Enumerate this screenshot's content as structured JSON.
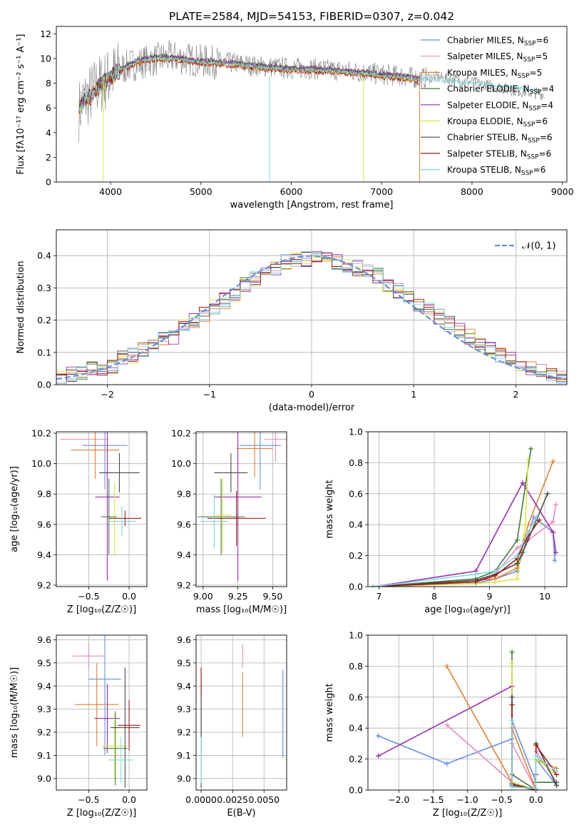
{
  "colors": {
    "chabrier_miles": "#6a8fde",
    "salpeter_miles": "#e58ac2",
    "kroupa_miles": "#e5802f",
    "chabrier_elodie": "#3f7a3f",
    "salpeter_elodie": "#9a2fb0",
    "kroupa_elodie": "#d9e640",
    "chabrier_stelib": "#4a4a4a",
    "salpeter_stelib": "#a31818",
    "kroupa_stelib": "#7fd8e0",
    "normal_curve": "#6a8fde"
  },
  "chart_data": [
    {
      "id": "spectrum",
      "type": "line",
      "title": "PLATE=2584, MJD=54153, FIBERID=0307, z=0.042",
      "xlabel": "wavelength [Angstrom, rest frame]",
      "ylabel": "Flux [fλ10⁻¹⁷ erg cm⁻² s⁻¹ A⁻¹]",
      "xlim": [
        3400,
        9050
      ],
      "ylim": [
        0,
        12.6
      ],
      "xticks": [
        4000,
        5000,
        6000,
        7000,
        8000,
        9000
      ],
      "yticks": [
        0,
        2,
        4,
        6,
        8,
        10,
        12
      ],
      "grid": false,
      "legend_position": "top-right",
      "legend": [
        {
          "label": "Chabrier MILES, N",
          "sub": "SSP",
          "tail": "=6"
        },
        {
          "label": "Salpeter MILES, N",
          "sub": "SSP",
          "tail": "=5"
        },
        {
          "label": "Kroupa MILES, N",
          "sub": "SSP",
          "tail": "=5"
        },
        {
          "label": "Chabrier ELODIE, N",
          "sub": "SSP",
          "tail": "=4"
        },
        {
          "label": "Salpeter ELODIE, N",
          "sub": "SSP",
          "tail": "=4"
        },
        {
          "label": "Kroupa ELODIE, N",
          "sub": "SSP",
          "tail": "=6"
        },
        {
          "label": "Chabrier STELIB, N",
          "sub": "SSP",
          "tail": "=6"
        },
        {
          "label": "Salpeter STELIB, N",
          "sub": "SSP",
          "tail": "=6"
        },
        {
          "label": "Kroupa STELIB, N",
          "sub": "SSP",
          "tail": "=6"
        }
      ],
      "series": [
        {
          "key": "data",
          "color": "#808080",
          "x": [
            3650,
            3700,
            3750,
            3800,
            3850,
            3900,
            3950,
            4000,
            4100,
            4200,
            4300,
            4400,
            4500,
            4600,
            4700,
            4800,
            4900,
            5000,
            5200,
            5400,
            5600,
            5800,
            6000,
            6200,
            6400,
            6600,
            6800,
            7000,
            7200,
            7400,
            7600,
            7800,
            8000,
            8200,
            8400,
            8600,
            8800
          ],
          "y": [
            5.8,
            6.6,
            6.9,
            7.3,
            7.8,
            8.0,
            8.2,
            8.6,
            9.1,
            9.4,
            9.6,
            9.8,
            9.9,
            10.0,
            10.1,
            10.0,
            9.9,
            9.8,
            9.7,
            9.6,
            9.4,
            9.3,
            9.2,
            9.2,
            9.1,
            9.0,
            8.9,
            8.7,
            8.6,
            8.4,
            8.5,
            8.3,
            8.1,
            7.8,
            7.5,
            7.3,
            7.1
          ]
        },
        {
          "key": "models",
          "color": "#7fd8e0",
          "x": [
            3650,
            3700,
            3750,
            3800,
            3850,
            3900,
            3950,
            4000,
            4100,
            4200,
            4300,
            4400,
            4500,
            4600,
            4700,
            4800,
            4900,
            5000,
            5200,
            5400,
            5600,
            5800,
            6000,
            6200,
            6400,
            6600,
            6800,
            7000,
            7200,
            7400
          ],
          "y": [
            6.0,
            6.4,
            6.7,
            7.1,
            7.6,
            7.9,
            8.1,
            8.5,
            9.0,
            9.4,
            9.7,
            9.9,
            10.0,
            10.0,
            10.0,
            9.9,
            9.8,
            9.7,
            9.6,
            9.5,
            9.3,
            9.2,
            9.1,
            9.1,
            9.0,
            8.9,
            8.8,
            8.6,
            8.5,
            8.3
          ]
        }
      ]
    },
    {
      "id": "residuals",
      "type": "line",
      "xlabel": "(data-model)/error",
      "ylabel": "Normed distribution",
      "xlim": [
        -2.5,
        2.5
      ],
      "ylim": [
        0,
        0.48
      ],
      "xticks": [
        -2,
        -1,
        0,
        1,
        2
      ],
      "xtick_labels": [
        "−2",
        "−1",
        "0",
        "1",
        "2"
      ],
      "yticks": [
        0.0,
        0.1,
        0.2,
        0.3,
        0.4
      ],
      "ytick_labels": [
        "0.0",
        "0.1",
        "0.2",
        "0.3",
        "0.4"
      ],
      "grid": true,
      "legend_position": "top-right",
      "legend": [
        {
          "label": "𝒩(0, 1)"
        }
      ],
      "bin_edges": [
        -2.5,
        -2.4,
        -2.3,
        -2.2,
        -2.1,
        -2.0,
        -1.9,
        -1.8,
        -1.7,
        -1.6,
        -1.5,
        -1.4,
        -1.3,
        -1.2,
        -1.1,
        -1.0,
        -0.9,
        -0.8,
        -0.7,
        -0.6,
        -0.5,
        -0.4,
        -0.3,
        -0.2,
        -0.1,
        0.0,
        0.1,
        0.2,
        0.3,
        0.4,
        0.5,
        0.6,
        0.7,
        0.8,
        0.9,
        1.0,
        1.1,
        1.2,
        1.3,
        1.4,
        1.5,
        1.6,
        1.7,
        1.8,
        1.9,
        2.0,
        2.1,
        2.2,
        2.3,
        2.4,
        2.5
      ],
      "hist_base": [
        0.02,
        0.03,
        0.04,
        0.05,
        0.05,
        0.06,
        0.08,
        0.09,
        0.11,
        0.12,
        0.14,
        0.15,
        0.18,
        0.2,
        0.22,
        0.24,
        0.26,
        0.28,
        0.31,
        0.33,
        0.35,
        0.36,
        0.38,
        0.39,
        0.39,
        0.4,
        0.39,
        0.38,
        0.37,
        0.36,
        0.35,
        0.34,
        0.31,
        0.29,
        0.27,
        0.25,
        0.23,
        0.21,
        0.19,
        0.17,
        0.15,
        0.13,
        0.11,
        0.09,
        0.08,
        0.06,
        0.05,
        0.04,
        0.03,
        0.02
      ],
      "curve": {
        "type": "normal",
        "mean": 0,
        "sd": 1
      }
    },
    {
      "id": "age_vs_Z",
      "type": "scatter",
      "xlabel": "Z [log₁₀(Z/Z☉)]",
      "ylabel": "age  [log₁₀(age/yr)]",
      "xlim": [
        -0.9,
        0.22
      ],
      "ylim": [
        9.19,
        10.21
      ],
      "xticks": [
        -0.5,
        0.0
      ],
      "xtick_labels": [
        "−0.5",
        "0.0"
      ],
      "yticks": [
        9.2,
        9.4,
        9.6,
        9.8,
        10.0,
        10.2
      ],
      "ytick_labels": [
        "9.2",
        "9.4",
        "9.6",
        "9.8",
        "10.0",
        "10.2"
      ],
      "grid": true,
      "points": [
        {
          "x": -0.3,
          "xerr": 0.28,
          "y": 10.12,
          "yerr": 0.29
        },
        {
          "x": -0.55,
          "xerr": 0.3,
          "y": 10.16,
          "yerr": 0.0
        },
        {
          "x": -0.42,
          "xerr": 0.3,
          "y": 10.09,
          "yerr": 0.19
        },
        {
          "x": -0.25,
          "xerr": 0.1,
          "y": 9.65,
          "yerr": 0.25
        },
        {
          "x": -0.27,
          "xerr": 0.15,
          "y": 9.78,
          "yerr": 0.55
        },
        {
          "x": -0.18,
          "xerr": 0.06,
          "y": 9.64,
          "yerr": 0.24
        },
        {
          "x": -0.12,
          "xerr": 0.25,
          "y": 9.94,
          "yerr": 0.13
        },
        {
          "x": -0.05,
          "xerr": 0.2,
          "y": 9.64,
          "yerr": 0.05
        },
        {
          "x": -0.09,
          "xerr": 0.18,
          "y": 9.62,
          "yerr": 0.1
        }
      ]
    },
    {
      "id": "age_vs_mass",
      "type": "scatter",
      "xlabel": "mass [log₁₀(M/M☉)]",
      "xlim": [
        8.95,
        9.6
      ],
      "ylim": [
        9.19,
        10.21
      ],
      "xticks": [
        9.0,
        9.25,
        9.5
      ],
      "xtick_labels": [
        "9.00",
        "9.25",
        "9.50"
      ],
      "yticks": [
        9.2,
        9.4,
        9.6,
        9.8,
        10.0,
        10.2
      ],
      "ytick_labels": [
        "9.2",
        "9.4",
        "9.6",
        "9.8",
        "10.0",
        "10.2"
      ],
      "grid": true,
      "points": [
        {
          "x": 9.41,
          "xerr": 0.15,
          "y": 10.12,
          "yerr": 0.29
        },
        {
          "x": 9.52,
          "xerr": 0.08,
          "y": 10.16,
          "yerr": 0.15
        },
        {
          "x": 9.37,
          "xerr": 0.13,
          "y": 10.1,
          "yerr": 0.19
        },
        {
          "x": 9.13,
          "xerr": 0.17,
          "y": 9.65,
          "yerr": 0.25
        },
        {
          "x": 9.25,
          "xerr": 0.17,
          "y": 9.78,
          "yerr": 0.55
        },
        {
          "x": 9.14,
          "xerr": 0.06,
          "y": 9.66,
          "yerr": 0.24
        },
        {
          "x": 9.2,
          "xerr": 0.12,
          "y": 9.94,
          "yerr": 0.13
        },
        {
          "x": 9.24,
          "xerr": 0.21,
          "y": 9.64,
          "yerr": 0.18
        },
        {
          "x": 9.08,
          "xerr": 0.1,
          "y": 9.62,
          "yerr": 0.18
        }
      ]
    },
    {
      "id": "massweight_vs_age",
      "type": "line",
      "xlabel": "age  [log₁₀(age/yr)]",
      "ylabel": "mass weight",
      "xlim": [
        6.8,
        10.4
      ],
      "ylim": [
        0,
        1.0
      ],
      "xticks": [
        7,
        8,
        9,
        10
      ],
      "xtick_labels": [
        "7",
        "8",
        "9",
        "10"
      ],
      "yticks": [
        0.0,
        0.2,
        0.4,
        0.6,
        0.8,
        1.0
      ],
      "ytick_labels": [
        "0.0",
        "0.2",
        "0.4",
        "0.6",
        "0.8",
        "1.0"
      ],
      "grid": true,
      "series": [
        {
          "x": [
            6.9,
            8.75,
            9.1,
            9.5,
            9.8,
            10.15,
            10.18
          ],
          "y": [
            0.0,
            0.02,
            0.05,
            0.1,
            0.45,
            0.35,
            0.17
          ]
        },
        {
          "x": [
            6.9,
            8.75,
            9.1,
            9.5,
            9.7,
            10.15,
            10.2
          ],
          "y": [
            0.0,
            0.03,
            0.08,
            0.25,
            0.3,
            0.42,
            0.53
          ]
        },
        {
          "x": [
            6.9,
            8.75,
            9.1,
            9.5,
            9.7,
            10.15
          ],
          "y": [
            0.0,
            0.04,
            0.05,
            0.12,
            0.4,
            0.81
          ]
        },
        {
          "x": [
            6.9,
            8.75,
            9.1,
            9.5,
            9.75
          ],
          "y": [
            0.0,
            0.05,
            0.1,
            0.3,
            0.89
          ]
        },
        {
          "x": [
            6.9,
            8.75,
            9.6,
            10.15,
            10.2
          ],
          "y": [
            0.0,
            0.1,
            0.67,
            0.35,
            0.22
          ]
        },
        {
          "x": [
            6.9,
            8.75,
            9.1,
            9.5,
            9.65,
            9.7
          ],
          "y": [
            0.0,
            0.02,
            0.03,
            0.05,
            0.4,
            0.82
          ]
        },
        {
          "x": [
            6.9,
            8.75,
            9.1,
            9.5,
            9.6,
            10.05
          ],
          "y": [
            0.0,
            0.04,
            0.08,
            0.15,
            0.22,
            0.6
          ]
        },
        {
          "x": [
            6.9,
            8.75,
            9.1,
            9.5,
            9.65,
            9.9
          ],
          "y": [
            0.0,
            0.03,
            0.07,
            0.18,
            0.3,
            0.43
          ]
        },
        {
          "x": [
            6.9,
            8.75,
            9.1,
            9.5,
            9.7,
            9.85
          ],
          "y": [
            0.0,
            0.08,
            0.1,
            0.2,
            0.35,
            0.45
          ]
        }
      ]
    },
    {
      "id": "mass_vs_Z",
      "type": "scatter",
      "xlabel": "Z [log₁₀(Z/Z☉)]",
      "ylabel": "mass [log₁₀(M/M☉)]",
      "xlim": [
        -0.9,
        0.22
      ],
      "ylim": [
        8.95,
        9.62
      ],
      "xticks": [
        -0.5,
        0.0
      ],
      "xtick_labels": [
        "−0.5",
        "0.0"
      ],
      "yticks": [
        9.0,
        9.1,
        9.2,
        9.3,
        9.4,
        9.5,
        9.6
      ],
      "ytick_labels": [
        "9.0",
        "9.1",
        "9.2",
        "9.3",
        "9.4",
        "9.5",
        "9.6"
      ],
      "grid": true,
      "points": [
        {
          "x": -0.3,
          "xerr": 0.2,
          "y": 9.43,
          "yerr": 0.33
        },
        {
          "x": -0.5,
          "xerr": 0.2,
          "y": 9.53,
          "yerr": 0.06
        },
        {
          "x": -0.4,
          "xerr": 0.27,
          "y": 9.32,
          "yerr": 0.18
        },
        {
          "x": -0.17,
          "xerr": 0.15,
          "y": 9.13,
          "yerr": 0.16
        },
        {
          "x": -0.27,
          "xerr": 0.16,
          "y": 9.26,
          "yerr": 0.15
        },
        {
          "x": -0.18,
          "xerr": 0.16,
          "y": 9.14,
          "yerr": 0.14
        },
        {
          "x": -0.05,
          "xerr": 0.18,
          "y": 9.22,
          "yerr": 0.26
        },
        {
          "x": 0.0,
          "xerr": 0.14,
          "y": 9.23,
          "yerr": 0.11
        },
        {
          "x": -0.1,
          "xerr": 0.15,
          "y": 9.08,
          "yerr": 0.1
        }
      ]
    },
    {
      "id": "mass_vs_EBV",
      "type": "scatter",
      "xlabel": "E(B-V)",
      "xlim": [
        -0.0004,
        0.0068
      ],
      "ylim": [
        8.95,
        9.62
      ],
      "xticks": [
        0.0,
        0.0025,
        0.005
      ],
      "xtick_labels": [
        "0.0000",
        "0.0025",
        "0.0050"
      ],
      "yticks": [
        9.0,
        9.1,
        9.2,
        9.3,
        9.4,
        9.5,
        9.6
      ],
      "ytick_labels": [
        "9.0",
        "9.1",
        "9.2",
        "9.3",
        "9.4",
        "9.5",
        "9.6"
      ],
      "grid": true,
      "points": [
        {
          "x": 0.0065,
          "y": 9.28,
          "yerr": 0.19
        },
        {
          "x": 0.0033,
          "y": 9.53,
          "yerr": 0.05
        },
        {
          "x": 0.0033,
          "y": 9.32,
          "yerr": 0.14
        },
        {
          "x": 0.0,
          "y": 9.13,
          "yerr": 0.16
        },
        {
          "x": 0.0,
          "y": 9.26,
          "yerr": 0.15
        },
        {
          "x": 0.0,
          "y": 9.0,
          "yerr": 0.03
        },
        {
          "x": 0.0,
          "y": 9.22,
          "yerr": 0.26
        },
        {
          "x": 0.0,
          "y": 9.42,
          "yerr": 0.06
        },
        {
          "x": 0.0,
          "y": 9.08,
          "yerr": 0.1
        }
      ]
    },
    {
      "id": "massweight_vs_Z",
      "type": "line",
      "xlabel": "Z [log₁₀(Z/Z☉)]",
      "ylabel": "mass weight",
      "xlim": [
        -2.45,
        0.45
      ],
      "ylim": [
        0,
        1.0
      ],
      "xticks": [
        -2.0,
        -1.5,
        -1.0,
        -0.5,
        0.0
      ],
      "xtick_labels": [
        "−2.0",
        "−1.5",
        "−1.0",
        "−0.5",
        "0.0"
      ],
      "yticks": [
        0.0,
        0.2,
        0.4,
        0.6,
        0.8,
        1.0
      ],
      "ytick_labels": [
        "0.0",
        "0.2",
        "0.4",
        "0.6",
        "0.8",
        "1.0"
      ],
      "grid": true,
      "series": [
        {
          "x": [
            -2.3,
            -1.3,
            -0.35,
            -0.35,
            0.0,
            0.0,
            0.3
          ],
          "y": [
            0.35,
            0.17,
            0.33,
            0.45,
            0.05,
            0.2,
            0.03
          ]
        },
        {
          "x": [
            -1.3,
            -0.35,
            -0.35,
            0.0,
            0.0,
            0.3
          ],
          "y": [
            0.42,
            0.05,
            0.3,
            0.0,
            0.25,
            0.05
          ]
        },
        {
          "x": [
            -1.3,
            -0.35,
            -0.35,
            0.0,
            0.0,
            0.3
          ],
          "y": [
            0.8,
            0.05,
            0.4,
            0.0,
            0.2,
            0.14
          ]
        },
        {
          "x": [
            -0.35,
            -0.35,
            0.0,
            0.0,
            0.3
          ],
          "y": [
            0.89,
            0.1,
            0.0,
            0.05,
            0.05
          ]
        },
        {
          "x": [
            -2.3,
            -0.35,
            -0.35,
            0.0,
            0.0
          ],
          "y": [
            0.22,
            0.67,
            0.05,
            0.0,
            0.1
          ]
        },
        {
          "x": [
            -0.35,
            -0.35,
            0.0,
            0.0,
            0.3
          ],
          "y": [
            0.82,
            0.05,
            0.0,
            0.2,
            0.1
          ]
        },
        {
          "x": [
            -0.35,
            -0.35,
            0.0,
            0.0,
            0.3
          ],
          "y": [
            0.6,
            0.03,
            0.0,
            0.3,
            0.03
          ]
        },
        {
          "x": [
            -0.35,
            -0.35,
            0.0,
            0.0,
            0.3
          ],
          "y": [
            0.55,
            0.04,
            0.0,
            0.29,
            0.1
          ]
        },
        {
          "x": [
            -0.35,
            -0.35,
            0.0,
            0.0,
            0.3
          ],
          "y": [
            0.45,
            0.02,
            0.01,
            0.22,
            0.12
          ]
        }
      ]
    }
  ]
}
